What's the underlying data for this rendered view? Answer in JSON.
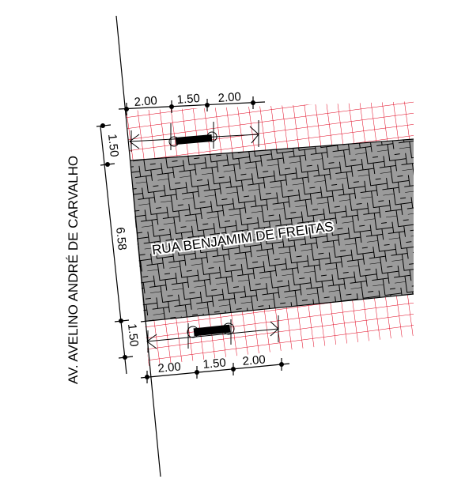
{
  "avenue": {
    "name": "AV. AVELINO ANDRÉ DE CARVALHO"
  },
  "street": {
    "name": "RUA BENJAMIM DE FREITAS"
  },
  "sidewalk_top": {
    "width_label": "1.50",
    "segments": [
      "2.00",
      "1.50",
      "2.00"
    ]
  },
  "roadway": {
    "width_label": "6.58"
  },
  "sidewalk_bottom": {
    "width_label": "1.50",
    "segments": [
      "2.00",
      "1.50",
      "2.00"
    ]
  },
  "colors": {
    "sidewalk_grid": "#e0001a",
    "paving_fill": "#9b9b9b",
    "paving_joints": "#000000",
    "linework": "#000000"
  }
}
